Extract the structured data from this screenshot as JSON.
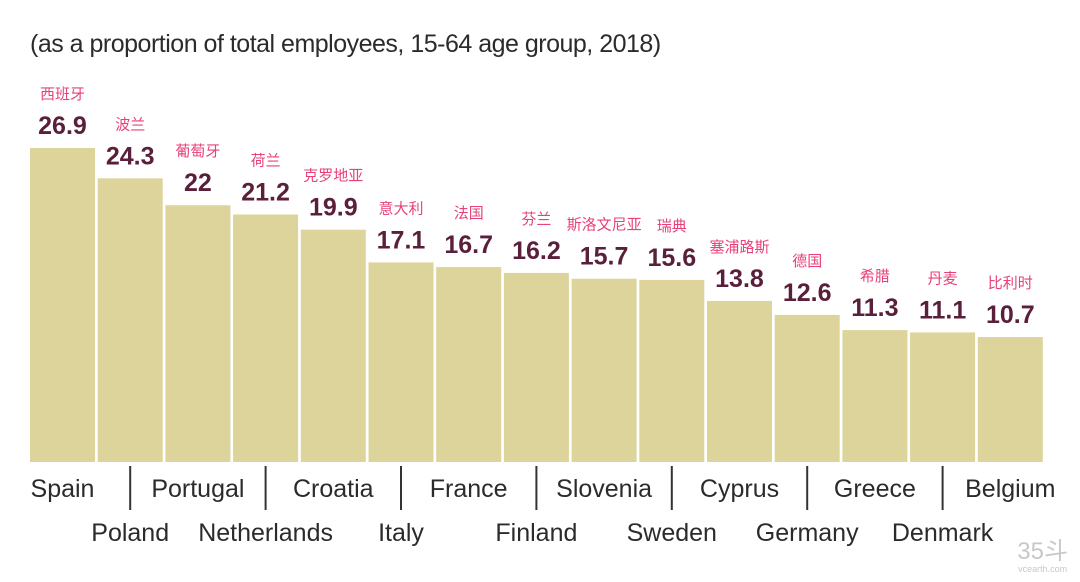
{
  "chart_data": {
    "type": "bar",
    "title": "(as a proportion of total employees, 15-64 age group, 2018)",
    "categories": [
      "Spain",
      "Poland",
      "Portugal",
      "Netherlands",
      "Croatia",
      "Italy",
      "France",
      "Finland",
      "Slovenia",
      "Sweden",
      "Cyprus",
      "Germany",
      "Greece",
      "Denmark",
      "Belgium"
    ],
    "labels_zh": [
      "西班牙",
      "波兰",
      "葡萄牙",
      "荷兰",
      "克罗地亚",
      "意大利",
      "法国",
      "芬兰",
      "斯洛文尼亚",
      "瑞典",
      "塞浦路斯",
      "德国",
      "希腊",
      "丹麦",
      "比利时"
    ],
    "values": [
      26.9,
      24.3,
      22,
      21.2,
      19.9,
      17.1,
      16.7,
      16.2,
      15.7,
      15.6,
      13.8,
      12.6,
      11.3,
      11.1,
      10.7
    ],
    "value_labels": [
      "26.9",
      "24.3",
      "22",
      "21.2",
      "19.9",
      "17.1",
      "16.7",
      "16.2",
      "15.7",
      "15.6",
      "13.8",
      "12.6",
      "11.3",
      "11.1",
      "10.7"
    ],
    "ylim": [
      0,
      26.9
    ],
    "bar_color": "#dcd49a",
    "value_color": "#5a1f3a",
    "zh_label_color": "#e8407a"
  },
  "watermark": {
    "main": "35斗",
    "sub": "vcearth.com"
  }
}
